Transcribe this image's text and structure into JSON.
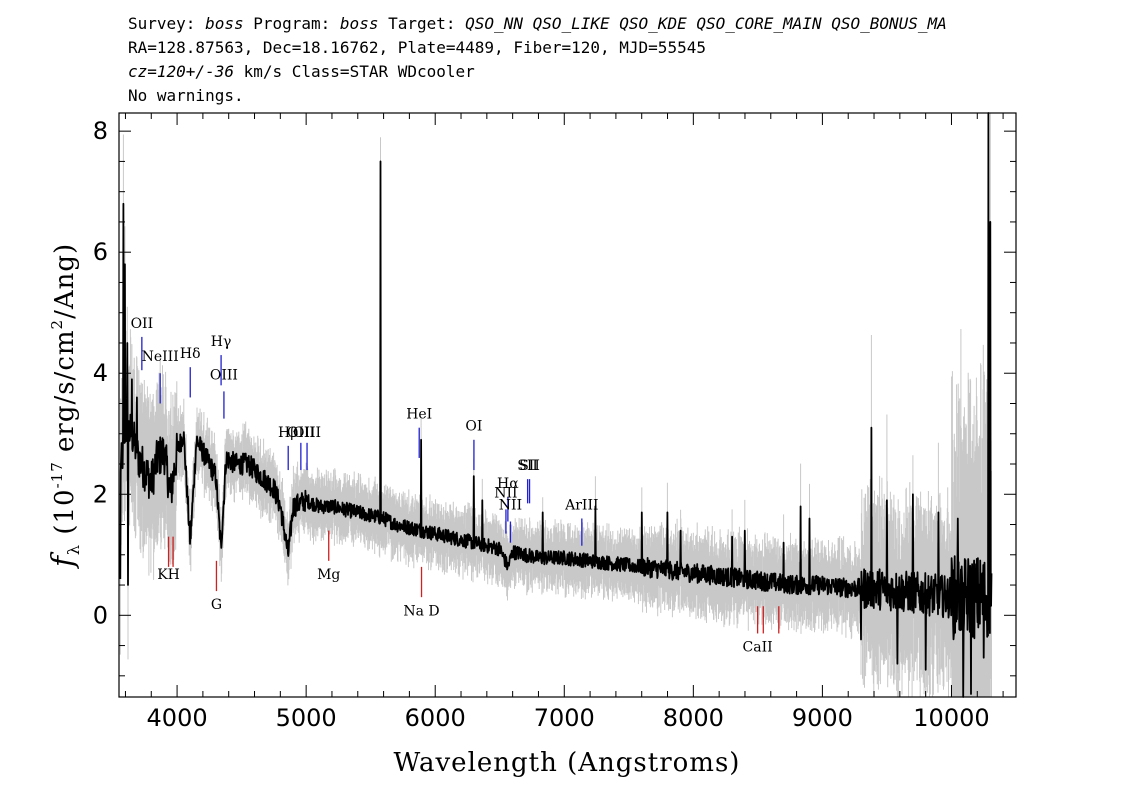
{
  "header": {
    "survey_prefix": "Survey: ",
    "survey": "boss",
    "program_prefix": " Program: ",
    "program": "boss",
    "target_prefix": " Target: ",
    "target": "QSO_NN QSO_LIKE QSO_KDE QSO_CORE_MAIN QSO_BONUS_MA",
    "line2": "RA=128.87563, Dec=18.16762, Plate=4489, Fiber=120, MJD=55545",
    "cz": "cz=120+/-36",
    "cz_rest": " km/s Class=STAR WDcooler",
    "line4": "No warnings."
  },
  "chart_data": {
    "type": "line",
    "xlabel": "Wavelength (Angstroms)",
    "ylabel_main": "f",
    "ylabel_sub": "λ",
    "ylabel_rest": " (10",
    "ylabel_exp": "-17",
    "ylabel_rest2": " erg/s/cm",
    "ylabel_exp2": "2",
    "ylabel_rest3": "/Ang)",
    "xlim": [
      3550,
      10500
    ],
    "ylim": [
      -1.35,
      8.3
    ],
    "xticks": [
      4000,
      5000,
      6000,
      7000,
      8000,
      9000,
      10000
    ],
    "yticks": [
      0,
      2,
      4,
      6,
      8
    ],
    "colors": {
      "flux": "#000000",
      "error": "#c8c8c8",
      "emission": "#2020d0",
      "absorption": "#d02020"
    },
    "continuum": [
      [
        3570,
        2.5
      ],
      [
        3600,
        3.1
      ],
      [
        3650,
        3.0
      ],
      [
        3700,
        2.6
      ],
      [
        3750,
        2.4
      ],
      [
        3800,
        2.2
      ],
      [
        3850,
        2.6
      ],
      [
        3900,
        2.7
      ],
      [
        3950,
        2.0
      ],
      [
        4000,
        2.7
      ],
      [
        4050,
        3.0
      ],
      [
        4102,
        1.2
      ],
      [
        4150,
        2.9
      ],
      [
        4200,
        2.7
      ],
      [
        4250,
        2.5
      ],
      [
        4300,
        2.3
      ],
      [
        4340,
        1.1
      ],
      [
        4380,
        2.6
      ],
      [
        4450,
        2.5
      ],
      [
        4550,
        2.5
      ],
      [
        4650,
        2.3
      ],
      [
        4750,
        2.1
      ],
      [
        4800,
        1.8
      ],
      [
        4861,
        1.0
      ],
      [
        4900,
        1.8
      ],
      [
        5000,
        1.9
      ],
      [
        5100,
        1.8
      ],
      [
        5200,
        1.8
      ],
      [
        5300,
        1.75
      ],
      [
        5400,
        1.7
      ],
      [
        5500,
        1.65
      ],
      [
        5600,
        1.6
      ],
      [
        5700,
        1.5
      ],
      [
        5800,
        1.45
      ],
      [
        5900,
        1.4
      ],
      [
        6000,
        1.35
      ],
      [
        6100,
        1.3
      ],
      [
        6200,
        1.25
      ],
      [
        6300,
        1.2
      ],
      [
        6400,
        1.15
      ],
      [
        6500,
        1.1
      ],
      [
        6563,
        0.8
      ],
      [
        6600,
        1.05
      ],
      [
        6700,
        1.0
      ],
      [
        6800,
        0.95
      ],
      [
        7000,
        0.95
      ],
      [
        7200,
        0.9
      ],
      [
        7400,
        0.85
      ],
      [
        7600,
        0.8
      ],
      [
        7800,
        0.75
      ],
      [
        8000,
        0.7
      ],
      [
        8200,
        0.65
      ],
      [
        8400,
        0.6
      ],
      [
        8600,
        0.55
      ],
      [
        8800,
        0.5
      ],
      [
        9000,
        0.5
      ],
      [
        9200,
        0.45
      ],
      [
        9400,
        0.45
      ],
      [
        9600,
        0.4
      ],
      [
        9800,
        0.35
      ],
      [
        10000,
        0.3
      ],
      [
        10200,
        0.3
      ],
      [
        10300,
        0.3
      ]
    ],
    "spikes": [
      [
        3585,
        6.8
      ],
      [
        3595,
        5.8
      ],
      [
        3615,
        4.5
      ],
      [
        3650,
        3.9
      ],
      [
        3690,
        3.6
      ],
      [
        5577,
        7.5
      ],
      [
        5890,
        2.9
      ],
      [
        6300,
        2.3
      ],
      [
        6364,
        1.9
      ],
      [
        6833,
        1.7
      ],
      [
        7240,
        1.8
      ],
      [
        7600,
        1.7
      ],
      [
        7800,
        1.7
      ],
      [
        7900,
        1.4
      ],
      [
        8300,
        1.3
      ],
      [
        8400,
        1.4
      ],
      [
        8700,
        1.2
      ],
      [
        8830,
        1.8
      ],
      [
        8900,
        1.6
      ],
      [
        9380,
        3.1
      ],
      [
        9500,
        1.9
      ],
      [
        9700,
        2.0
      ],
      [
        9900,
        1.7
      ],
      [
        10050,
        1.6
      ],
      [
        10285,
        8.3
      ],
      [
        10300,
        6.5
      ]
    ],
    "dips": [
      [
        3560,
        0.6
      ],
      [
        3620,
        0.5
      ],
      [
        9300,
        -0.4
      ],
      [
        9580,
        -0.8
      ],
      [
        9800,
        -0.9
      ],
      [
        10090,
        -1.35
      ],
      [
        10150,
        -1.3
      ],
      [
        10250,
        -0.7
      ]
    ],
    "emission_lines": [
      {
        "label": "OII",
        "wave": 3727,
        "y0": 4.6,
        "y1": 4.05,
        "ly": 4.75
      },
      {
        "label": "NeIII",
        "wave": 3869,
        "y0": 4.0,
        "y1": 3.5,
        "ly": 4.2
      },
      {
        "label": "Hδ",
        "wave": 4102,
        "y0": 4.1,
        "y1": 3.6,
        "ly": 4.25
      },
      {
        "label": "Hγ",
        "wave": 4341,
        "y0": 4.3,
        "y1": 3.8,
        "ly": 4.45
      },
      {
        "label": "OIII",
        "wave": 4363,
        "y0": 3.7,
        "y1": 3.25,
        "ly": 3.9
      },
      {
        "label": "Hβ",
        "wave": 4861,
        "y0": 2.8,
        "y1": 2.4,
        "ly": 2.95
      },
      {
        "label": "OIII",
        "wave": 4959,
        "y0": 2.85,
        "y1": 2.4,
        "ly": 2.95
      },
      {
        "label": "OIII",
        "wave": 5007,
        "y0": 2.85,
        "y1": 2.4,
        "ly": 2.95
      },
      {
        "label": "HeI",
        "wave": 5876,
        "y0": 3.1,
        "y1": 2.6,
        "ly": 3.25
      },
      {
        "label": "OI",
        "wave": 6300,
        "y0": 2.9,
        "y1": 2.4,
        "ly": 3.05
      },
      {
        "label": "NII",
        "wave": 6548,
        "y0": 1.75,
        "y1": 1.35,
        "ly": 1.95
      },
      {
        "label": "Hα",
        "wave": 6563,
        "y0": 1.95,
        "y1": 1.55,
        "ly": 2.1
      },
      {
        "label": "NII",
        "wave": 6583,
        "y0": 1.55,
        "y1": 1.2,
        "ly": 1.75
      },
      {
        "label": "SII",
        "wave": 6716,
        "y0": 2.25,
        "y1": 1.85,
        "ly": 2.4
      },
      {
        "label": "SII",
        "wave": 6731,
        "y0": 2.25,
        "y1": 1.85,
        "ly": 2.4
      },
      {
        "label": "ArIII",
        "wave": 7136,
        "y0": 1.6,
        "y1": 1.15,
        "ly": 1.75
      }
    ],
    "absorption_lines": [
      {
        "label": "KH",
        "wave": 3934,
        "y0": 1.3,
        "y1": 0.8,
        "ly": 0.6
      },
      {
        "label": "",
        "wave": 3969,
        "y0": 1.3,
        "y1": 0.8,
        "ly": 0.6
      },
      {
        "label": "G",
        "wave": 4305,
        "y0": 0.9,
        "y1": 0.4,
        "ly": 0.1
      },
      {
        "label": "Mg",
        "wave": 5175,
        "y0": 1.4,
        "y1": 0.9,
        "ly": 0.6
      },
      {
        "label": "Na D",
        "wave": 5894,
        "y0": 0.8,
        "y1": 0.3,
        "ly": 0.0
      },
      {
        "label": "CaII",
        "wave": 8498,
        "y0": 0.15,
        "y1": -0.3,
        "ly": -0.6
      },
      {
        "label": "",
        "wave": 8542,
        "y0": 0.15,
        "y1": -0.3,
        "ly": -0.6
      },
      {
        "label": "",
        "wave": 8662,
        "y0": 0.15,
        "y1": -0.3,
        "ly": -0.6
      }
    ]
  }
}
